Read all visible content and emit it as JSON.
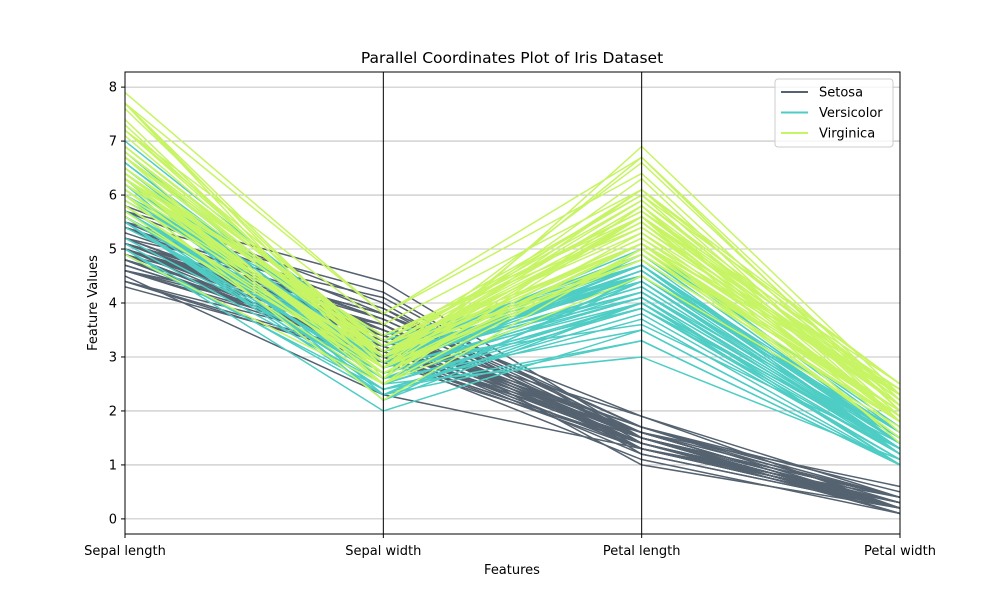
{
  "chart_data": {
    "type": "parallel_coordinates",
    "title": "Parallel Coordinates Plot of Iris Dataset",
    "xlabel": "Features",
    "ylabel": "Feature Values",
    "categories": [
      "Sepal length",
      "Sepal width",
      "Petal length",
      "Petal width"
    ],
    "y_ticks": [
      0,
      1,
      2,
      3,
      4,
      5,
      6,
      7,
      8
    ],
    "ylim": [
      -0.28,
      8.28
    ],
    "grid": "horizontal",
    "legend_position": "top-right",
    "series": [
      {
        "name": "Setosa",
        "color": "#556270",
        "rows": [
          [
            5.1,
            3.5,
            1.4,
            0.2
          ],
          [
            4.9,
            3.0,
            1.4,
            0.2
          ],
          [
            4.7,
            3.2,
            1.3,
            0.2
          ],
          [
            4.6,
            3.1,
            1.5,
            0.2
          ],
          [
            5.0,
            3.6,
            1.4,
            0.2
          ],
          [
            5.4,
            3.9,
            1.7,
            0.4
          ],
          [
            4.6,
            3.4,
            1.4,
            0.3
          ],
          [
            5.0,
            3.4,
            1.5,
            0.2
          ],
          [
            4.4,
            2.9,
            1.4,
            0.2
          ],
          [
            4.9,
            3.1,
            1.5,
            0.1
          ],
          [
            5.4,
            3.7,
            1.5,
            0.2
          ],
          [
            4.8,
            3.4,
            1.6,
            0.2
          ],
          [
            4.8,
            3.0,
            1.4,
            0.1
          ],
          [
            4.3,
            3.0,
            1.1,
            0.1
          ],
          [
            5.8,
            4.0,
            1.2,
            0.2
          ],
          [
            5.7,
            4.4,
            1.5,
            0.4
          ],
          [
            5.4,
            3.9,
            1.3,
            0.4
          ],
          [
            5.1,
            3.5,
            1.4,
            0.3
          ],
          [
            5.7,
            3.8,
            1.7,
            0.3
          ],
          [
            5.1,
            3.8,
            1.5,
            0.3
          ],
          [
            5.4,
            3.4,
            1.7,
            0.2
          ],
          [
            5.1,
            3.7,
            1.5,
            0.4
          ],
          [
            4.6,
            3.6,
            1.0,
            0.2
          ],
          [
            5.1,
            3.3,
            1.7,
            0.5
          ],
          [
            4.8,
            3.4,
            1.9,
            0.2
          ],
          [
            5.0,
            3.0,
            1.6,
            0.2
          ],
          [
            5.0,
            3.4,
            1.6,
            0.4
          ],
          [
            5.2,
            3.5,
            1.5,
            0.2
          ],
          [
            5.2,
            3.4,
            1.4,
            0.2
          ],
          [
            4.7,
            3.2,
            1.6,
            0.2
          ],
          [
            4.8,
            3.1,
            1.6,
            0.2
          ],
          [
            5.4,
            3.4,
            1.5,
            0.4
          ],
          [
            5.2,
            4.1,
            1.5,
            0.1
          ],
          [
            5.5,
            4.2,
            1.4,
            0.2
          ],
          [
            4.9,
            3.1,
            1.5,
            0.2
          ],
          [
            5.0,
            3.2,
            1.2,
            0.2
          ],
          [
            5.5,
            3.5,
            1.3,
            0.2
          ],
          [
            4.9,
            3.6,
            1.4,
            0.1
          ],
          [
            4.4,
            3.0,
            1.3,
            0.2
          ],
          [
            5.1,
            3.4,
            1.5,
            0.2
          ],
          [
            5.0,
            3.5,
            1.3,
            0.3
          ],
          [
            4.5,
            2.3,
            1.3,
            0.3
          ],
          [
            4.4,
            3.2,
            1.3,
            0.2
          ],
          [
            5.0,
            3.5,
            1.6,
            0.6
          ],
          [
            5.1,
            3.8,
            1.9,
            0.4
          ],
          [
            4.8,
            3.0,
            1.4,
            0.3
          ],
          [
            5.1,
            3.8,
            1.6,
            0.2
          ],
          [
            4.6,
            3.2,
            1.4,
            0.2
          ],
          [
            5.3,
            3.7,
            1.5,
            0.2
          ],
          [
            5.0,
            3.3,
            1.4,
            0.2
          ]
        ]
      },
      {
        "name": "Versicolor",
        "color": "#4ECDC4",
        "rows": [
          [
            7.0,
            3.2,
            4.7,
            1.4
          ],
          [
            6.4,
            3.2,
            4.5,
            1.5
          ],
          [
            6.9,
            3.1,
            4.9,
            1.5
          ],
          [
            5.5,
            2.3,
            4.0,
            1.3
          ],
          [
            6.5,
            2.8,
            4.6,
            1.5
          ],
          [
            5.7,
            2.8,
            4.5,
            1.3
          ],
          [
            6.3,
            3.3,
            4.7,
            1.6
          ],
          [
            4.9,
            2.4,
            3.3,
            1.0
          ],
          [
            6.6,
            2.9,
            4.6,
            1.3
          ],
          [
            5.2,
            2.7,
            3.9,
            1.4
          ],
          [
            5.0,
            2.0,
            3.5,
            1.0
          ],
          [
            5.9,
            3.0,
            4.2,
            1.5
          ],
          [
            6.0,
            2.2,
            4.0,
            1.0
          ],
          [
            6.1,
            2.9,
            4.7,
            1.4
          ],
          [
            5.6,
            2.9,
            3.6,
            1.3
          ],
          [
            6.7,
            3.1,
            4.4,
            1.4
          ],
          [
            5.6,
            3.0,
            4.5,
            1.5
          ],
          [
            5.8,
            2.7,
            4.1,
            1.0
          ],
          [
            6.2,
            2.2,
            4.5,
            1.5
          ],
          [
            5.6,
            2.5,
            3.9,
            1.1
          ],
          [
            5.9,
            3.2,
            4.8,
            1.8
          ],
          [
            6.1,
            2.8,
            4.0,
            1.3
          ],
          [
            6.3,
            2.5,
            4.9,
            1.5
          ],
          [
            6.1,
            2.8,
            4.7,
            1.2
          ],
          [
            6.4,
            2.9,
            4.3,
            1.3
          ],
          [
            6.6,
            3.0,
            4.4,
            1.4
          ],
          [
            6.8,
            2.8,
            4.8,
            1.4
          ],
          [
            6.7,
            3.0,
            5.0,
            1.7
          ],
          [
            6.0,
            2.9,
            4.5,
            1.5
          ],
          [
            5.7,
            2.6,
            3.5,
            1.0
          ],
          [
            5.5,
            2.4,
            3.8,
            1.1
          ],
          [
            5.5,
            2.4,
            3.7,
            1.0
          ],
          [
            5.8,
            2.7,
            3.9,
            1.2
          ],
          [
            6.0,
            2.7,
            5.1,
            1.6
          ],
          [
            5.4,
            3.0,
            4.5,
            1.5
          ],
          [
            6.0,
            3.4,
            4.5,
            1.6
          ],
          [
            6.7,
            3.1,
            4.7,
            1.5
          ],
          [
            6.3,
            2.3,
            4.4,
            1.3
          ],
          [
            5.6,
            3.0,
            4.1,
            1.3
          ],
          [
            5.5,
            2.5,
            4.0,
            1.3
          ],
          [
            5.5,
            2.6,
            4.4,
            1.2
          ],
          [
            6.1,
            3.0,
            4.6,
            1.4
          ],
          [
            5.8,
            2.6,
            4.0,
            1.2
          ],
          [
            5.0,
            2.3,
            3.3,
            1.0
          ],
          [
            5.6,
            2.7,
            4.2,
            1.3
          ],
          [
            5.7,
            3.0,
            4.2,
            1.2
          ],
          [
            5.7,
            2.9,
            4.2,
            1.3
          ],
          [
            6.2,
            2.9,
            4.3,
            1.3
          ],
          [
            5.1,
            2.5,
            3.0,
            1.1
          ],
          [
            5.7,
            2.8,
            4.1,
            1.3
          ]
        ]
      },
      {
        "name": "Virginica",
        "color": "#C7F464",
        "rows": [
          [
            6.3,
            3.3,
            6.0,
            2.5
          ],
          [
            5.8,
            2.7,
            5.1,
            1.9
          ],
          [
            7.1,
            3.0,
            5.9,
            2.1
          ],
          [
            6.3,
            2.9,
            5.6,
            1.8
          ],
          [
            6.5,
            3.0,
            5.8,
            2.2
          ],
          [
            7.6,
            3.0,
            6.6,
            2.1
          ],
          [
            4.9,
            2.5,
            4.5,
            1.7
          ],
          [
            7.3,
            2.9,
            6.3,
            1.8
          ],
          [
            6.7,
            2.5,
            5.8,
            1.8
          ],
          [
            7.2,
            3.6,
            6.1,
            2.5
          ],
          [
            6.5,
            3.2,
            5.1,
            2.0
          ],
          [
            6.4,
            2.7,
            5.3,
            1.9
          ],
          [
            6.8,
            3.0,
            5.5,
            2.1
          ],
          [
            5.7,
            2.5,
            5.0,
            2.0
          ],
          [
            5.8,
            2.8,
            5.1,
            2.4
          ],
          [
            6.4,
            3.2,
            5.3,
            2.3
          ],
          [
            6.5,
            3.0,
            5.5,
            1.8
          ],
          [
            7.7,
            3.8,
            6.7,
            2.2
          ],
          [
            7.7,
            2.6,
            6.9,
            2.3
          ],
          [
            6.0,
            2.2,
            5.0,
            1.5
          ],
          [
            6.9,
            3.2,
            5.7,
            2.3
          ],
          [
            5.6,
            2.8,
            4.9,
            2.0
          ],
          [
            7.7,
            2.8,
            6.7,
            2.0
          ],
          [
            6.3,
            2.7,
            4.9,
            1.8
          ],
          [
            6.7,
            3.3,
            5.7,
            2.1
          ],
          [
            7.2,
            3.2,
            6.0,
            1.8
          ],
          [
            6.2,
            2.8,
            4.8,
            1.8
          ],
          [
            6.1,
            3.0,
            4.9,
            1.8
          ],
          [
            6.4,
            2.8,
            5.6,
            2.1
          ],
          [
            7.2,
            3.0,
            5.8,
            1.6
          ],
          [
            7.4,
            2.8,
            6.1,
            1.9
          ],
          [
            7.9,
            3.8,
            6.4,
            2.0
          ],
          [
            6.4,
            2.8,
            5.6,
            2.2
          ],
          [
            6.3,
            2.8,
            5.1,
            1.5
          ],
          [
            6.1,
            2.6,
            5.6,
            1.4
          ],
          [
            7.7,
            3.0,
            6.1,
            2.3
          ],
          [
            6.3,
            3.4,
            5.6,
            2.4
          ],
          [
            6.4,
            3.1,
            5.5,
            1.8
          ],
          [
            6.0,
            3.0,
            4.8,
            1.8
          ],
          [
            6.9,
            3.1,
            5.4,
            2.1
          ],
          [
            6.7,
            3.1,
            5.6,
            2.4
          ],
          [
            6.9,
            3.1,
            5.1,
            2.3
          ],
          [
            5.8,
            2.7,
            5.1,
            1.9
          ],
          [
            6.8,
            3.2,
            5.9,
            2.3
          ],
          [
            6.7,
            3.3,
            5.7,
            2.5
          ],
          [
            6.7,
            3.0,
            5.2,
            2.3
          ],
          [
            6.3,
            2.5,
            5.0,
            1.9
          ],
          [
            6.5,
            3.0,
            5.2,
            2.0
          ],
          [
            6.2,
            3.4,
            5.4,
            2.3
          ],
          [
            5.9,
            3.0,
            5.1,
            1.8
          ]
        ]
      }
    ]
  }
}
